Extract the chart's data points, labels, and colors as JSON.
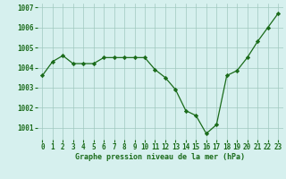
{
  "x": [
    0,
    1,
    2,
    3,
    4,
    5,
    6,
    7,
    8,
    9,
    10,
    11,
    12,
    13,
    14,
    15,
    16,
    17,
    18,
    19,
    20,
    21,
    22,
    23
  ],
  "y": [
    1003.6,
    1004.3,
    1004.6,
    1004.2,
    1004.2,
    1004.2,
    1004.5,
    1004.5,
    1004.5,
    1004.5,
    1004.5,
    1003.9,
    1003.5,
    1002.9,
    1001.85,
    1001.6,
    1000.7,
    1001.15,
    1003.6,
    1003.85,
    1004.5,
    1005.3,
    1006.0,
    1006.7
  ],
  "line_color": "#1a6b1a",
  "marker_color": "#1a6b1a",
  "bg_color": "#d6f0ee",
  "grid_color": "#a0c8c0",
  "ylabel_values": [
    1001,
    1002,
    1003,
    1004,
    1005,
    1006,
    1007
  ],
  "xlabel_label": "Graphe pression niveau de la mer (hPa)",
  "ylim": [
    1000.4,
    1007.2
  ],
  "xlim": [
    -0.5,
    23.5
  ],
  "tick_fontsize": 5.5,
  "xlabel_fontsize": 6.0,
  "line_width": 0.9,
  "marker_size": 2.2
}
